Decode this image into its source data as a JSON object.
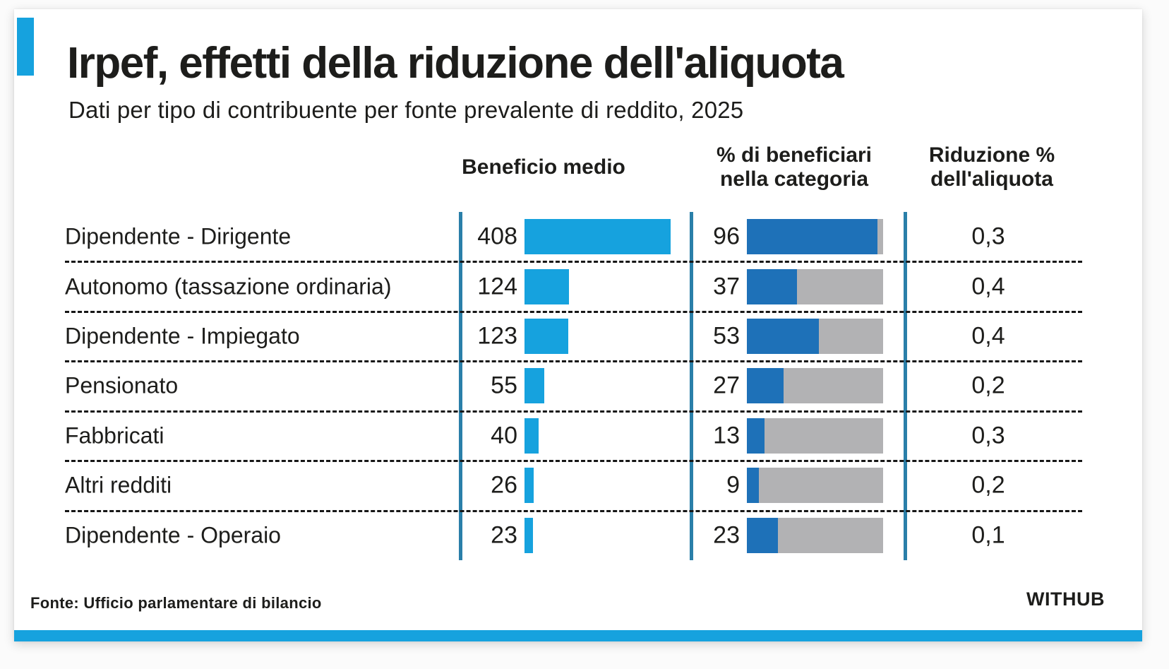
{
  "title": "Irpef, effetti della riduzione dell'aliquota",
  "subtitle": "Dati per tipo di contribuente per fonte prevalente di reddito, 2025",
  "columns": {
    "col1": "Beneficio medio",
    "col2_line1": "% di beneficiari",
    "col2_line2": "nella categoria",
    "col3_line1": "Riduzione %",
    "col3_line2": "dell'aliquota"
  },
  "rows": [
    {
      "label": "Dipendente - Dirigente",
      "beneficio": "408",
      "perc": "96",
      "riduzione": "0,3"
    },
    {
      "label": "Autonomo (tassazione ordinaria)",
      "beneficio": "124",
      "perc": "37",
      "riduzione": "0,4"
    },
    {
      "label": "Dipendente - Impiegato",
      "beneficio": "123",
      "perc": "53",
      "riduzione": "0,4"
    },
    {
      "label": "Pensionato",
      "beneficio": "55",
      "perc": "27",
      "riduzione": "0,2"
    },
    {
      "label": "Fabbricati",
      "beneficio": "40",
      "perc": "13",
      "riduzione": "0,3"
    },
    {
      "label": "Altri redditi",
      "beneficio": "26",
      "perc": "9",
      "riduzione": "0,2"
    },
    {
      "label": "Dipendente - Operaio",
      "beneficio": "23",
      "perc": "23",
      "riduzione": "0,1"
    }
  ],
  "footer": {
    "source": "Fonte: Ufficio parlamentare di bilancio",
    "logo": "WITHUB"
  },
  "colors": {
    "accent-blue": "#16A2DE",
    "bar-blue": "#1E71B8",
    "bar-gray": "#B2B2B4",
    "line-teal": "#2A7FA9",
    "text": "#1D1D1B"
  },
  "chart_data": {
    "type": "bar",
    "title": "Irpef, effetti della riduzione dell'aliquota",
    "subtitle": "Dati per tipo di contribuente per fonte prevalente di reddito, 2025",
    "categories": [
      "Dipendente - Dirigente",
      "Autonomo (tassazione ordinaria)",
      "Dipendente - Impiegato",
      "Pensionato",
      "Fabbricati",
      "Altri redditi",
      "Dipendente - Operaio"
    ],
    "series": [
      {
        "name": "Beneficio medio",
        "values": [
          408,
          124,
          123,
          55,
          40,
          26,
          23
        ]
      },
      {
        "name": "% di beneficiari nella categoria",
        "values": [
          96,
          37,
          53,
          27,
          13,
          9,
          23
        ],
        "range": [
          0,
          100
        ]
      },
      {
        "name": "Riduzione % dell'aliquota",
        "values": [
          0.3,
          0.4,
          0.4,
          0.2,
          0.3,
          0.2,
          0.1
        ]
      }
    ],
    "orientation": "horizontal",
    "grid": "dashed-row-separators",
    "legend_position": "none",
    "source": "Fonte: Ufficio parlamentare di bilancio"
  }
}
